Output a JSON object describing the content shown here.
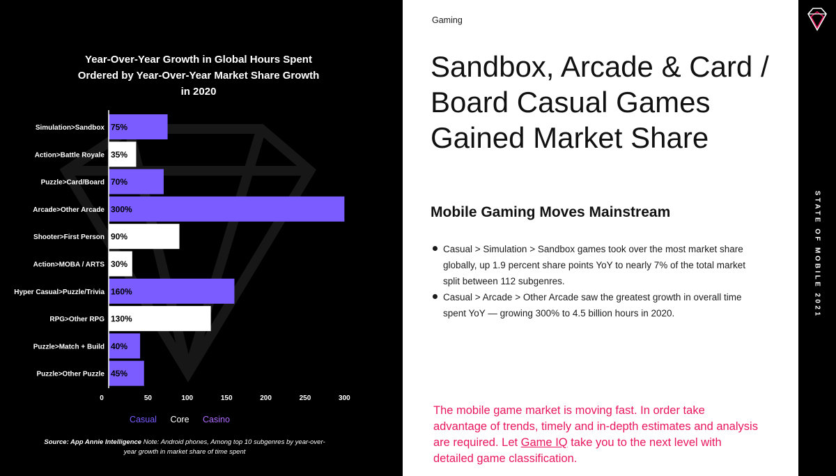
{
  "chart_data": {
    "type": "bar",
    "orientation": "horizontal",
    "title": "Year-Over-Year Growth in Global Hours Spent\nOrdered by Year-Over-Year Market Share Growth\nin 2020",
    "categories": [
      "Simulation>Sandbox",
      "Action>Battle Royale",
      "Puzzle>Card/Board",
      "Arcade>Other Arcade",
      "Shooter>First Person",
      "Action>MOBA / ARTS",
      "Hyper Casual>Puzzle/Trivia",
      "RPG>Other RPG",
      "Puzzle>Match + Build",
      "Puzzle>Other Puzzle"
    ],
    "values": [
      75,
      35,
      70,
      300,
      90,
      30,
      160,
      130,
      40,
      45
    ],
    "value_labels": [
      "75%",
      "35%",
      "70%",
      "300%",
      "90%",
      "30%",
      "160%",
      "130%",
      "40%",
      "45%"
    ],
    "groups": [
      "Casual",
      "Core",
      "Casual",
      "Casual",
      "Core",
      "Core",
      "Casual",
      "Core",
      "Casual",
      "Casual"
    ],
    "xticks": [
      "0",
      "50",
      "100",
      "150",
      "200",
      "250",
      "300"
    ],
    "xlim": [
      0,
      305
    ],
    "legend": [
      {
        "name": "Casual",
        "color": "#7b5cff"
      },
      {
        "name": "Core",
        "color": "#ffffff"
      },
      {
        "name": "Casino",
        "color": "#b06cff"
      }
    ],
    "legend_position": "bottom",
    "colors": {
      "Casual": "#7b5cff",
      "Core": "#ffffff"
    },
    "grid": false
  },
  "source": {
    "label": "Source: App Annie Intelligence",
    "note": " Note: Android phones, Among top 10 subgenres by year-over-year growth in market share of time spent"
  },
  "section_label": "Gaming",
  "headline": "Sandbox, Arcade & Card / Board Casual Games Gained Market Share",
  "subheading": "Mobile Gaming Moves Mainstream",
  "bullets": [
    "Casual > Simulation > Sandbox games took over the most market share globally, up 1.9 percent share points YoY to nearly 7% of the total market split between 112 subgenres.",
    "Casual > Arcade > Other Arcade saw the greatest growth in overall time spent YoY — growing 300% to 4.5 billion hours in 2020."
  ],
  "cta": {
    "before": "The mobile game market is moving fast. In order take advantage of trends, timely and in-depth estimates and analysis are required. Let ",
    "link": "Game IQ",
    "after": " take you to the next level with detailed game classification."
  },
  "sidebar_text": "STATE OF MOBILE 2021",
  "accent_color": "#e8175d",
  "logo_icon": "diamond-logo-icon"
}
